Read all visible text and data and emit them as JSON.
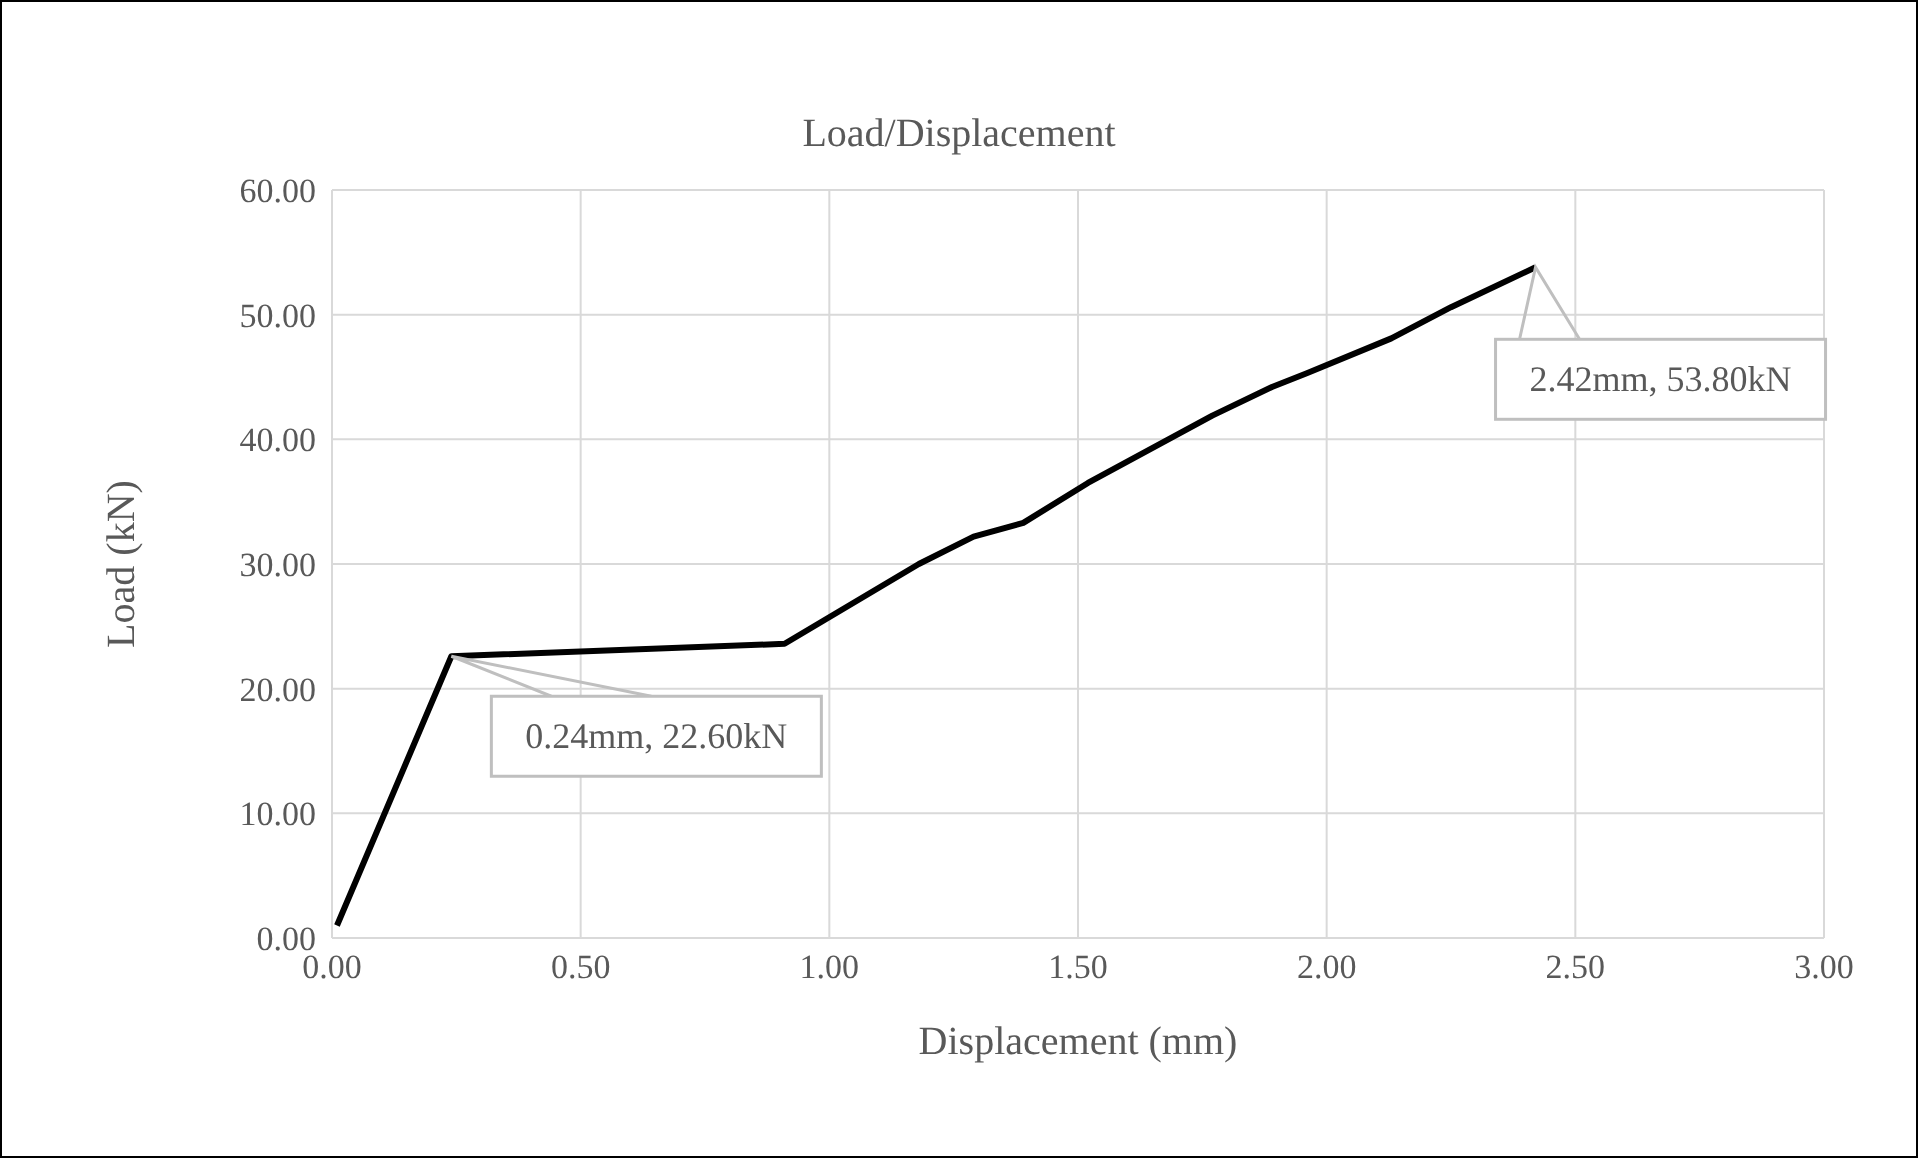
{
  "chart_data": {
    "type": "line",
    "title": "Load/Displacement",
    "xlabel": "Displacement (mm)",
    "ylabel": "Load (kN)",
    "x": [
      0.01,
      0.24,
      0.91,
      1.18,
      1.29,
      1.39,
      1.52,
      1.77,
      1.89,
      1.96,
      2.13,
      2.25,
      2.42
    ],
    "series": [
      {
        "color": "#000000",
        "values": [
          1.0,
          22.6,
          23.6,
          30.0,
          32.2,
          33.3,
          36.5,
          41.9,
          44.2,
          45.3,
          48.1,
          50.6,
          53.8
        ]
      }
    ],
    "xlim": [
      0,
      3
    ],
    "xticks": [
      {
        "value": 0,
        "label": "0.00"
      },
      {
        "value": 0.5,
        "label": "0.50"
      },
      {
        "value": 1,
        "label": "1.00"
      },
      {
        "value": 1.5,
        "label": "1.50"
      },
      {
        "value": 2,
        "label": "2.00"
      },
      {
        "value": 2.5,
        "label": "2.50"
      },
      {
        "value": 3,
        "label": "3.00"
      }
    ],
    "ylim": [
      0,
      60
    ],
    "yticks": [
      {
        "value": 0,
        "label": "0.00"
      },
      {
        "value": 10,
        "label": "10.00"
      },
      {
        "value": 20,
        "label": "20.00"
      },
      {
        "value": 30,
        "label": "30.00"
      },
      {
        "value": 40,
        "label": "40.00"
      },
      {
        "value": 50,
        "label": "50.00"
      },
      {
        "value": 60,
        "label": "60.00"
      }
    ],
    "grid": true,
    "legend": false,
    "marker": "none",
    "line_style": "solid",
    "annotations": [
      {
        "text": "0.24mm, 22.60kN",
        "x": 0.24,
        "y": 22.6
      },
      {
        "text": "2.42mm, 53.80kN",
        "x": 2.42,
        "y": 53.8
      }
    ]
  }
}
